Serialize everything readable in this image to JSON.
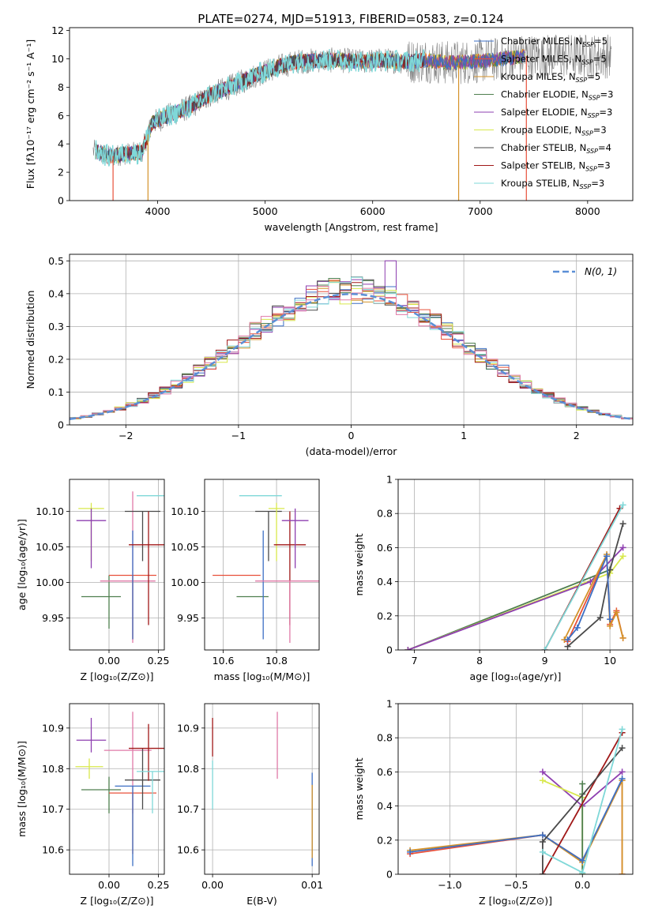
{
  "figure_title": "PLATE=0274, MJD=51913, FIBERID=0583, z=0.124",
  "colors": {
    "chabrier_miles": "#3d6fc4",
    "salpeter_miles": "#e8503a",
    "kroupa_miles": "#d4922a",
    "chabrier_elodie": "#4f7f4f",
    "salpeter_elodie": "#8e3fb0",
    "kroupa_elodie": "#d8e84c",
    "chabrier_stelib": "#4a4a4a",
    "salpeter_stelib": "#a01818",
    "kroupa_stelib": "#7fd8d8",
    "pink_extra": "#e07aa8",
    "normal_curve": "#5b8fd6"
  },
  "chart_data": [
    {
      "id": "spectrum",
      "type": "line",
      "title": "PLATE=0274, MJD=51913, FIBERID=0583, z=0.124",
      "xlabel": "wavelength [Angstrom, rest frame]",
      "ylabel": "Flux [fλ10⁻¹⁷ erg cm⁻² s⁻¹ A⁻¹]",
      "xlim": [
        3180,
        8420
      ],
      "ylim": [
        0,
        12.2
      ],
      "xticks": [
        4000,
        5000,
        6000,
        7000,
        8000
      ],
      "yticks": [
        0,
        2,
        4,
        6,
        8,
        10,
        12
      ],
      "legend_position": "upper right",
      "legend": [
        {
          "label": "Chabrier MILES, N",
          "sub": "SSP",
          "eq": "=5",
          "color_key": "chabrier_miles"
        },
        {
          "label": "Salpeter MILES, N",
          "sub": "SSP",
          "eq": "=5",
          "color_key": "salpeter_miles"
        },
        {
          "label": "Kroupa MILES, N",
          "sub": "SSP",
          "eq": "=5",
          "color_key": "kroupa_miles"
        },
        {
          "label": "Chabrier ELODIE, N",
          "sub": "SSP",
          "eq": "=3",
          "color_key": "chabrier_elodie"
        },
        {
          "label": "Salpeter ELODIE, N",
          "sub": "SSP",
          "eq": "=3",
          "color_key": "salpeter_elodie"
        },
        {
          "label": "Kroupa ELODIE, N",
          "sub": "SSP",
          "eq": "=3",
          "color_key": "kroupa_elodie"
        },
        {
          "label": "Chabrier STELIB, N",
          "sub": "SSP",
          "eq": "=4",
          "color_key": "chabrier_stelib"
        },
        {
          "label": "Salpeter STELIB, N",
          "sub": "SSP",
          "eq": "=3",
          "color_key": "salpeter_stelib"
        },
        {
          "label": "Kroupa STELIB, N",
          "sub": "SSP",
          "eq": "=3",
          "color_key": "kroupa_stelib"
        }
      ],
      "continuum": [
        [
          3420,
          3.5
        ],
        [
          3550,
          3.1
        ],
        [
          3700,
          3.3
        ],
        [
          3850,
          3.4
        ],
        [
          3950,
          5.5
        ],
        [
          4100,
          6.0
        ],
        [
          4300,
          6.6
        ],
        [
          4500,
          7.5
        ],
        [
          4700,
          8.1
        ],
        [
          4900,
          8.8
        ],
        [
          5100,
          9.4
        ],
        [
          5300,
          9.8
        ],
        [
          5500,
          9.9
        ],
        [
          5700,
          9.9
        ],
        [
          5900,
          9.8
        ],
        [
          6100,
          9.9
        ],
        [
          6300,
          9.8
        ],
        [
          6500,
          9.9
        ],
        [
          6700,
          9.7
        ],
        [
          6900,
          9.8
        ],
        [
          7100,
          9.9
        ],
        [
          7300,
          10.1
        ],
        [
          7420,
          10.2
        ]
      ],
      "data_range": [
        3400,
        8220
      ],
      "spikes": [
        {
          "x": 3585,
          "to": 0,
          "color_key": "salpeter_miles"
        },
        {
          "x": 3910,
          "to": 0,
          "color_key": "kroupa_miles"
        },
        {
          "x": 6800,
          "to": 0,
          "color_key": "kroupa_miles"
        },
        {
          "x": 7430,
          "to": 0,
          "color_key": "salpeter_miles"
        }
      ]
    },
    {
      "id": "residuals",
      "type": "line",
      "style": "step-histogram",
      "xlabel": "(data-model)/error",
      "ylabel": "Normed distribution",
      "xlim": [
        -2.5,
        2.5
      ],
      "ylim": [
        0,
        0.52
      ],
      "xticks": [
        -2,
        -1,
        0,
        1,
        2
      ],
      "yticks": [
        0.0,
        0.1,
        0.2,
        0.3,
        0.4,
        0.5
      ],
      "grid": true,
      "legend_position": "upper right",
      "legend_label": "N(0, 1)",
      "bin_width": 0.1,
      "series": [
        {
          "color_key": "salpeter_elodie",
          "peak_x": 0.35,
          "peak_y": 0.5
        }
      ]
    },
    {
      "id": "age_vs_Z",
      "type": "scatter",
      "style": "errorbar",
      "xlabel": "Z [log₁₀(Z/Z⊙)]",
      "ylabel": "age  [log₁₀(age/yr)]",
      "xlim": [
        -0.2,
        0.28
      ],
      "ylim": [
        9.905,
        10.145
      ],
      "xticks": [
        0.0,
        0.25
      ],
      "xticklabels": [
        "0.00",
        "0.25"
      ],
      "yticks": [
        9.95,
        10.0,
        10.05,
        10.1
      ],
      "yticklabels": [
        "9.95",
        "10.00",
        "10.05",
        "10.10"
      ],
      "grid": true,
      "points": [
        {
          "x": -0.09,
          "xerr": 0.065,
          "y": 10.104,
          "yerr": 0.0,
          "ylo": 10.03,
          "yhi": 10.112,
          "color_key": "kroupa_elodie"
        },
        {
          "x": -0.09,
          "xerr": 0.075,
          "y": 10.087,
          "ylo": 10.02,
          "yhi": 10.104,
          "color_key": "salpeter_elodie"
        },
        {
          "x": -0.04,
          "xerr": 0.1,
          "y": 9.98,
          "ylo": 9.98,
          "yhi": 9.98,
          "color_key": "chabrier_elodie"
        },
        {
          "x": 0.0,
          "xerr": 0.0,
          "y": 10.01,
          "ylo": 9.935,
          "yhi": 10.01,
          "color_key": "chabrier_elodie"
        },
        {
          "x": 0.095,
          "xerr": 0.14,
          "y": 10.002,
          "ylo": 10.002,
          "yhi": 10.002,
          "color_key": "pink_extra"
        },
        {
          "x": 0.12,
          "xerr": 0.0,
          "y": 10.01,
          "ylo": 9.915,
          "yhi": 10.128,
          "color_key": "pink_extra"
        },
        {
          "x": 0.12,
          "xerr": 0.12,
          "y": 10.01,
          "ylo": 9.92,
          "yhi": 10.01,
          "color_key": "salpeter_miles"
        },
        {
          "x": 0.12,
          "xerr": 0.0,
          "y": 10.01,
          "ylo": 9.92,
          "yhi": 10.073,
          "color_key": "chabrier_miles"
        },
        {
          "x": 0.17,
          "xerr": 0.09,
          "y": 10.1,
          "ylo": 10.03,
          "yhi": 10.1,
          "color_key": "chabrier_stelib"
        },
        {
          "x": 0.2,
          "xerr": 0.1,
          "y": 10.053,
          "ylo": 9.94,
          "yhi": 10.1,
          "color_key": "salpeter_stelib"
        },
        {
          "x": 0.22,
          "xerr": 0.08,
          "y": 10.122,
          "ylo": 10.122,
          "yhi": 10.122,
          "color_key": "kroupa_stelib"
        }
      ]
    },
    {
      "id": "age_vs_mass",
      "type": "scatter",
      "style": "errorbar",
      "xlabel": "mass [log₁₀(M/M⊙)]",
      "xlim": [
        10.53,
        10.96
      ],
      "ylim": [
        9.905,
        10.145
      ],
      "xticks": [
        10.6,
        10.8
      ],
      "xticklabels": [
        "10.6",
        "10.8"
      ],
      "yticks": [
        9.95,
        10.0,
        10.05,
        10.1
      ],
      "yticklabels": [
        "9.95",
        "10.00",
        "10.05",
        "10.10"
      ],
      "grid": true,
      "points": [
        {
          "x": 10.65,
          "xerr": 0.09,
          "y": 10.01,
          "color_key": "salpeter_miles"
        },
        {
          "x": 10.71,
          "xerr": 0.06,
          "y": 9.98,
          "color_key": "chabrier_elodie"
        },
        {
          "x": 10.74,
          "xerr": 0.08,
          "y": 10.122,
          "color_key": "kroupa_stelib"
        },
        {
          "x": 10.75,
          "ylo": 9.92,
          "yhi": 10.073,
          "color_key": "chabrier_miles"
        },
        {
          "x": 10.77,
          "xerr": 0.05,
          "y": 10.1,
          "ylo": 10.03,
          "yhi": 10.1,
          "color_key": "chabrier_stelib"
        },
        {
          "x": 10.8,
          "xerr": 0.03,
          "y": 10.104,
          "ylo": 10.03,
          "yhi": 10.112,
          "color_key": "kroupa_elodie"
        },
        {
          "x": 10.85,
          "xerr": 0.06,
          "y": 10.053,
          "ylo": 9.94,
          "yhi": 10.1,
          "color_key": "salpeter_stelib"
        },
        {
          "x": 10.87,
          "xerr": 0.05,
          "y": 10.087,
          "ylo": 10.02,
          "yhi": 10.104,
          "color_key": "salpeter_elodie"
        },
        {
          "x": 10.85,
          "xerr": 0.13,
          "y": 10.002,
          "ylo": 9.915,
          "yhi": 10.002,
          "color_key": "pink_extra"
        }
      ]
    },
    {
      "id": "massweight_vs_age",
      "type": "line",
      "xlabel": "age  [log₁₀(age/yr)]",
      "ylabel": "mass weight",
      "xlim": [
        6.75,
        10.35
      ],
      "ylim": [
        0,
        1.0
      ],
      "xticks": [
        7,
        8,
        9,
        10
      ],
      "yticks": [
        0.0,
        0.2,
        0.4,
        0.6,
        0.8,
        1.0
      ],
      "grid": true,
      "series": [
        {
          "color_key": "chabrier_elodie",
          "points": [
            [
              6.9,
              0.0
            ],
            [
              10.0,
              0.47
            ],
            [
              10.0,
              0.47
            ]
          ]
        },
        {
          "color_key": "kroupa_elodie",
          "points": [
            [
              6.9,
              0.0
            ],
            [
              10.0,
              0.45
            ],
            [
              10.2,
              0.55
            ]
          ]
        },
        {
          "color_key": "salpeter_elodie",
          "points": [
            [
              6.9,
              0.0
            ],
            [
              9.7,
              0.4
            ],
            [
              10.2,
              0.6
            ]
          ]
        },
        {
          "color_key": "chabrier_stelib",
          "points": [
            [
              9.35,
              0.02
            ],
            [
              9.85,
              0.19
            ],
            [
              10.0,
              0.47
            ],
            [
              10.2,
              0.74
            ]
          ]
        },
        {
          "color_key": "salpeter_stelib",
          "points": [
            [
              9.0,
              0.0
            ],
            [
              10.15,
              0.83
            ]
          ]
        },
        {
          "color_key": "kroupa_stelib",
          "points": [
            [
              9.0,
              0.0
            ],
            [
              10.2,
              0.85
            ]
          ]
        },
        {
          "color_key": "salpeter_miles",
          "points": [
            [
              9.35,
              0.05
            ],
            [
              9.95,
              0.55
            ],
            [
              10.0,
              0.15
            ],
            [
              10.1,
              0.23
            ],
            [
              10.2,
              0.07
            ]
          ]
        },
        {
          "color_key": "kroupa_miles",
          "points": [
            [
              9.3,
              0.06
            ],
            [
              9.95,
              0.56
            ],
            [
              10.0,
              0.14
            ],
            [
              10.1,
              0.22
            ],
            [
              10.2,
              0.07
            ]
          ]
        },
        {
          "color_key": "chabrier_miles",
          "points": [
            [
              9.35,
              0.06
            ],
            [
              9.5,
              0.13
            ],
            [
              9.95,
              0.55
            ],
            [
              10.0,
              0.18
            ]
          ]
        }
      ]
    },
    {
      "id": "mass_vs_Z",
      "type": "scatter",
      "style": "errorbar",
      "xlabel": "Z [log₁₀(Z/Z⊙)]",
      "ylabel": "mass [log₁₀(M/M⊙)]",
      "xlim": [
        -0.2,
        0.28
      ],
      "ylim": [
        10.54,
        10.96
      ],
      "xticks": [
        0.0,
        0.25
      ],
      "xticklabels": [
        "0.00",
        "0.25"
      ],
      "yticks": [
        10.6,
        10.7,
        10.8,
        10.9
      ],
      "yticklabels": [
        "10.6",
        "10.7",
        "10.8",
        "10.9"
      ],
      "grid": true,
      "points": [
        {
          "x": -0.09,
          "xerr": 0.075,
          "y": 10.87,
          "ylo": 10.84,
          "yhi": 10.925,
          "color_key": "salpeter_elodie"
        },
        {
          "x": -0.1,
          "xerr": 0.07,
          "y": 10.805,
          "ylo": 10.775,
          "yhi": 10.825,
          "color_key": "kroupa_elodie"
        },
        {
          "x": -0.04,
          "xerr": 0.1,
          "y": 10.748,
          "ylo": 10.748,
          "yhi": 10.748,
          "color_key": "chabrier_elodie"
        },
        {
          "x": 0.0,
          "ylo": 10.69,
          "yhi": 10.78,
          "color_key": "chabrier_elodie"
        },
        {
          "x": 0.095,
          "xerr": 0.12,
          "y": 10.845,
          "color_key": "pink_extra"
        },
        {
          "x": 0.12,
          "ylo": 10.69,
          "yhi": 10.94,
          "color_key": "pink_extra"
        },
        {
          "x": 0.12,
          "xerr": 0.12,
          "y": 10.74,
          "ylo": 10.59,
          "yhi": 10.74,
          "color_key": "salpeter_miles"
        },
        {
          "x": 0.12,
          "xerr": 0.09,
          "y": 10.757,
          "ylo": 10.56,
          "yhi": 10.757,
          "color_key": "chabrier_miles"
        },
        {
          "x": 0.17,
          "xerr": 0.09,
          "y": 10.772,
          "ylo": 10.7,
          "yhi": 10.85,
          "color_key": "chabrier_stelib"
        },
        {
          "x": 0.2,
          "xerr": 0.1,
          "y": 10.85,
          "ylo": 10.77,
          "yhi": 10.91,
          "color_key": "salpeter_stelib"
        },
        {
          "x": 0.22,
          "xerr": 0.08,
          "y": 10.793,
          "ylo": 10.69,
          "yhi": 10.793,
          "color_key": "kroupa_stelib"
        }
      ]
    },
    {
      "id": "mass_vs_ebv",
      "type": "scatter",
      "style": "errorbar",
      "xlabel": "E(B-V)",
      "xlim": [
        -0.0008,
        0.0107
      ],
      "ylim": [
        10.54,
        10.96
      ],
      "xticks": [
        0.0,
        0.01
      ],
      "xticklabels": [
        "0.00",
        "0.01"
      ],
      "yticks": [
        10.6,
        10.7,
        10.8,
        10.9
      ],
      "yticklabels": [
        "10.6",
        "10.7",
        "10.8",
        "10.9"
      ],
      "grid": true,
      "points": [
        {
          "x": 0.0,
          "ylo": 10.83,
          "yhi": 10.925,
          "color_key": "salpeter_stelib"
        },
        {
          "x": 0.0,
          "ylo": 10.7,
          "yhi": 10.82,
          "color_key": "kroupa_stelib"
        },
        {
          "x": 0.0065,
          "ylo": 10.775,
          "yhi": 10.94,
          "color_key": "pink_extra"
        },
        {
          "x": 0.01,
          "ylo": 10.56,
          "yhi": 10.79,
          "color_key": "chabrier_miles"
        },
        {
          "x": 0.01,
          "ylo": 10.58,
          "yhi": 10.76,
          "color_key": "kroupa_miles"
        }
      ]
    },
    {
      "id": "massweight_vs_Z",
      "type": "line",
      "xlabel": "Z [log₁₀(Z/Z⊙)]",
      "ylabel": "mass weight",
      "xlim": [
        -1.39,
        0.38
      ],
      "ylim": [
        0,
        1.0
      ],
      "xticks": [
        -1.0,
        -0.5,
        0.0
      ],
      "xticklabels": [
        "−1.0",
        "−0.5",
        "0.0"
      ],
      "yticks": [
        0.0,
        0.2,
        0.4,
        0.6,
        0.8,
        1.0
      ],
      "grid": true,
      "series": [
        {
          "color_key": "salpeter_elodie",
          "points": [
            [
              -0.3,
              0.6
            ],
            [
              0.0,
              0.4
            ],
            [
              0.3,
              0.6
            ]
          ]
        },
        {
          "color_key": "kroupa_elodie",
          "points": [
            [
              -0.3,
              0.55
            ],
            [
              0.0,
              0.45
            ],
            [
              0.0,
              0.0
            ]
          ]
        },
        {
          "color_key": "chabrier_elodie",
          "points": [
            [
              0.0,
              0.53
            ],
            [
              0.0,
              0.47
            ],
            [
              0.0,
              0.0
            ]
          ]
        },
        {
          "color_key": "salpeter_miles",
          "points": [
            [
              -1.3,
              0.12
            ],
            [
              -0.3,
              0.23
            ],
            [
              0.0,
              0.08
            ],
            [
              0.3,
              0.55
            ],
            [
              0.3,
              0.0
            ]
          ]
        },
        {
          "color_key": "kroupa_miles",
          "points": [
            [
              -1.3,
              0.14
            ],
            [
              -0.3,
              0.23
            ],
            [
              0.0,
              0.07
            ],
            [
              0.3,
              0.55
            ],
            [
              0.3,
              0.0
            ]
          ]
        },
        {
          "color_key": "chabrier_miles",
          "points": [
            [
              -1.3,
              0.13
            ],
            [
              -0.3,
              0.23
            ],
            [
              0.0,
              0.08
            ],
            [
              0.3,
              0.56
            ]
          ]
        },
        {
          "color_key": "salpeter_stelib",
          "points": [
            [
              -0.3,
              0.0
            ],
            [
              0.3,
              0.83
            ]
          ]
        },
        {
          "color_key": "chabrier_stelib",
          "points": [
            [
              -0.3,
              0.0
            ],
            [
              -0.3,
              0.19
            ],
            [
              0.3,
              0.74
            ]
          ]
        },
        {
          "color_key": "kroupa_stelib",
          "points": [
            [
              -0.3,
              0.13
            ],
            [
              0.0,
              0.01
            ],
            [
              0.3,
              0.85
            ]
          ]
        }
      ]
    }
  ]
}
